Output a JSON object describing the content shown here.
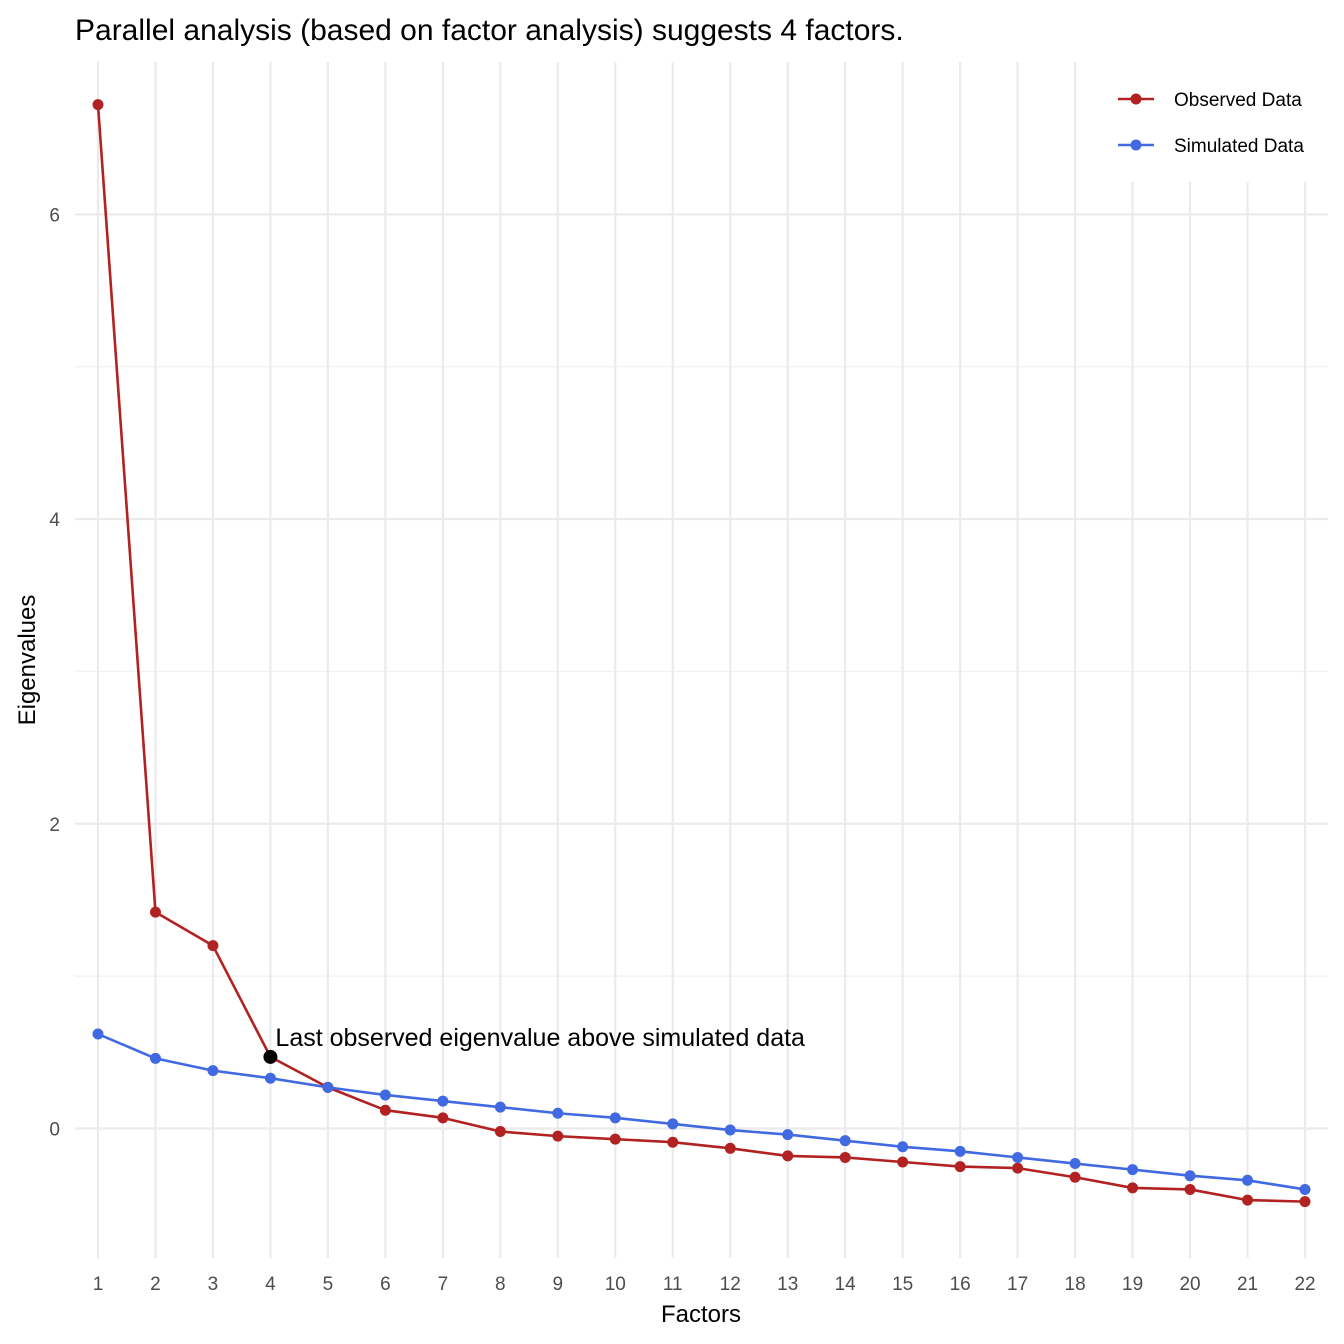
{
  "chart_data": {
    "type": "line",
    "title": "Parallel analysis (based on factor analysis) suggests 4 factors.",
    "xlabel": "Factors",
    "ylabel": "Eigenvalues",
    "x": [
      1,
      2,
      3,
      4,
      5,
      6,
      7,
      8,
      9,
      10,
      11,
      12,
      13,
      14,
      15,
      16,
      17,
      18,
      19,
      20,
      21,
      22
    ],
    "xlim": [
      0.6,
      22.4
    ],
    "ylim": [
      -0.85,
      7.0
    ],
    "yticks": [
      0,
      2,
      4,
      6
    ],
    "grid": true,
    "legend_position": "top-right",
    "series": [
      {
        "name": "Observed Data",
        "color": "#b22222",
        "values": [
          6.72,
          1.42,
          1.2,
          0.47,
          0.27,
          0.12,
          0.07,
          -0.02,
          -0.05,
          -0.07,
          -0.09,
          -0.13,
          -0.18,
          -0.19,
          -0.22,
          -0.25,
          -0.26,
          -0.32,
          -0.39,
          -0.4,
          -0.47,
          -0.48
        ]
      },
      {
        "name": "Simulated Data",
        "color": "#4169e1",
        "values": [
          0.62,
          0.46,
          0.38,
          0.33,
          0.27,
          0.22,
          0.18,
          0.14,
          0.1,
          0.07,
          0.03,
          -0.01,
          -0.04,
          -0.08,
          -0.12,
          -0.15,
          -0.19,
          -0.23,
          -0.27,
          -0.31,
          -0.34,
          -0.4
        ]
      }
    ],
    "annotation": {
      "text": "Last observed eigenvalue above simulated data",
      "x": 4,
      "y": 0.47,
      "marker_color": "#000000"
    }
  }
}
